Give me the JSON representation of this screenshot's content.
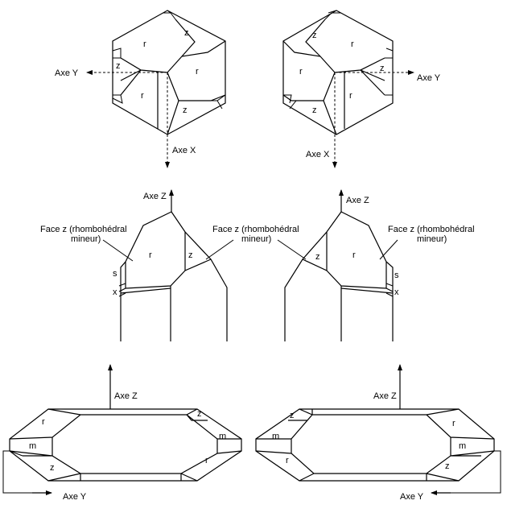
{
  "colors": {
    "line": "#000000",
    "background": "#ffffff"
  },
  "labels": {
    "axe_x": "Axe X",
    "axe_y": "Axe Y",
    "axe_z": "Axe Z",
    "face_z_line1": "Face z (rhombohédral",
    "face_z_line2": "mineur)"
  },
  "faces": {
    "r": "r",
    "z": "z",
    "m": "m",
    "s": "s",
    "x": "x"
  }
}
